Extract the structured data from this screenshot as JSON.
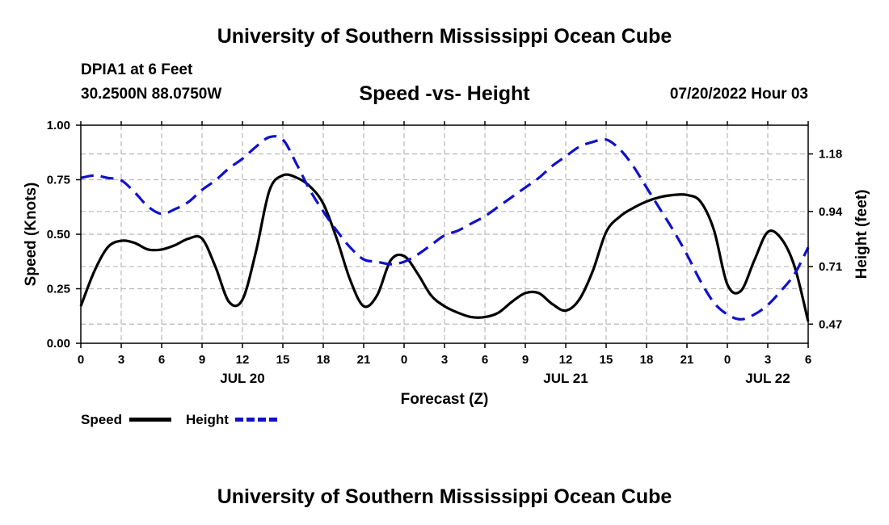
{
  "header": {
    "title": "University of Southern Mississippi Ocean Cube",
    "station": "DPIA1 at 6 Feet",
    "location": "30.2500N  88.0750W",
    "datetime": "07/20/2022 Hour 03"
  },
  "footer": {
    "title": "University of Southern Mississippi Ocean Cube"
  },
  "legend": {
    "speed_label": "Speed",
    "height_label": "Height"
  },
  "colors": {
    "speed": "#000000",
    "height": "#1010cc",
    "grid": "#b8b8b8"
  },
  "chart_data": {
    "type": "line",
    "title": "Speed -vs- Height",
    "xlabel": "Forecast (Z)",
    "ylabel": "Speed (Knots)",
    "y2label": "Height (feet)",
    "xlim": [
      0,
      54
    ],
    "ylim": [
      0,
      1
    ],
    "y2lim": [
      0.39,
      1.3
    ],
    "x_ticks": [
      0,
      3,
      6,
      9,
      12,
      15,
      18,
      21,
      24,
      27,
      30,
      33,
      36,
      39,
      42,
      45,
      48,
      51,
      54
    ],
    "x_tick_labels": [
      "0",
      "3",
      "6",
      "9",
      "12",
      "15",
      "18",
      "21",
      "0",
      "3",
      "6",
      "9",
      "12",
      "15",
      "18",
      "21",
      "0",
      "3",
      "6"
    ],
    "day_labels": [
      {
        "x": 12,
        "label": "JUL 20"
      },
      {
        "x": 36,
        "label": "JUL 21"
      },
      {
        "x": 51,
        "label": "JUL 22"
      }
    ],
    "y_ticks": [
      0,
      0.25,
      0.5,
      0.75,
      1.0
    ],
    "y_tick_labels": [
      "0.00",
      "0.25",
      "0.50",
      "0.75",
      "1.00"
    ],
    "y2_ticks": [
      0.47,
      0.71,
      0.94,
      1.18
    ],
    "y2_tick_labels": [
      "0.47",
      "0.71",
      "0.94",
      "1.18"
    ],
    "series": [
      {
        "name": "Speed",
        "axis": "left",
        "x": [
          0,
          1,
          2,
          3,
          4,
          5,
          6,
          7,
          8,
          9,
          10,
          11,
          12,
          13,
          14,
          15,
          16,
          17,
          18,
          19,
          20,
          21,
          22,
          23,
          24,
          25,
          26,
          27,
          28,
          29,
          30,
          31,
          32,
          33,
          34,
          35,
          36,
          37,
          38,
          39,
          40,
          41,
          42,
          43,
          44,
          45,
          46,
          47,
          48,
          49,
          50,
          51,
          52,
          53,
          54
        ],
        "values": [
          0.17,
          0.33,
          0.44,
          0.47,
          0.46,
          0.43,
          0.43,
          0.45,
          0.48,
          0.48,
          0.35,
          0.19,
          0.2,
          0.42,
          0.7,
          0.77,
          0.76,
          0.72,
          0.64,
          0.48,
          0.29,
          0.17,
          0.22,
          0.38,
          0.4,
          0.32,
          0.22,
          0.17,
          0.14,
          0.12,
          0.12,
          0.14,
          0.19,
          0.23,
          0.23,
          0.18,
          0.15,
          0.2,
          0.33,
          0.51,
          0.58,
          0.62,
          0.65,
          0.67,
          0.68,
          0.68,
          0.65,
          0.52,
          0.27,
          0.24,
          0.38,
          0.51,
          0.48,
          0.35,
          0.1
        ]
      },
      {
        "name": "Height",
        "axis": "right",
        "x": [
          0,
          1,
          2,
          3,
          4,
          5,
          6,
          7,
          8,
          9,
          10,
          11,
          12,
          13,
          14,
          15,
          16,
          17,
          18,
          19,
          20,
          21,
          22,
          23,
          24,
          25,
          26,
          27,
          28,
          29,
          30,
          31,
          32,
          33,
          34,
          35,
          36,
          37,
          38,
          39,
          40,
          41,
          42,
          43,
          44,
          45,
          46,
          47,
          48,
          49,
          50,
          51,
          52,
          53,
          54
        ],
        "values": [
          1.08,
          1.09,
          1.08,
          1.07,
          1.02,
          0.96,
          0.93,
          0.95,
          0.98,
          1.03,
          1.07,
          1.12,
          1.16,
          1.21,
          1.25,
          1.24,
          1.14,
          1.03,
          0.94,
          0.86,
          0.79,
          0.74,
          0.73,
          0.72,
          0.73,
          0.76,
          0.8,
          0.84,
          0.86,
          0.89,
          0.92,
          0.96,
          1.0,
          1.04,
          1.08,
          1.13,
          1.17,
          1.21,
          1.23,
          1.24,
          1.2,
          1.13,
          1.04,
          0.95,
          0.86,
          0.76,
          0.65,
          0.56,
          0.51,
          0.49,
          0.51,
          0.55,
          0.61,
          0.68,
          0.79
        ]
      }
    ]
  }
}
